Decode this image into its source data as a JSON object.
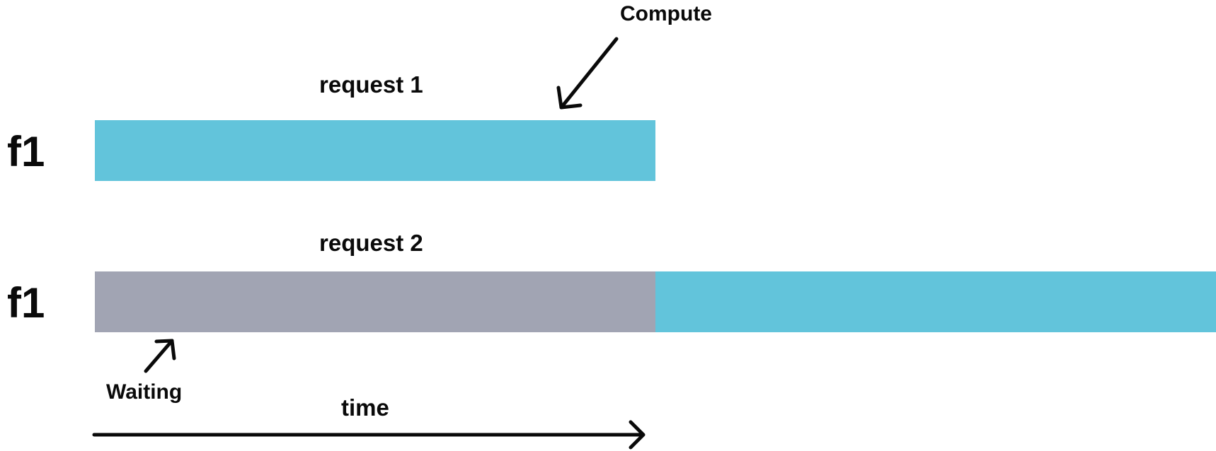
{
  "rows": [
    {
      "label": "f1",
      "request_label": "request 1",
      "segments": [
        {
          "state": "compute",
          "color": "#62C4DB"
        }
      ]
    },
    {
      "label": "f1",
      "request_label": "request 2",
      "segments": [
        {
          "state": "waiting",
          "color": "#A1A4B3"
        },
        {
          "state": "compute",
          "color": "#62C4DB"
        }
      ]
    }
  ],
  "annotations": {
    "compute": "Compute",
    "waiting": "Waiting"
  },
  "axis": {
    "label": "time"
  },
  "colors": {
    "compute": "#62C4DB",
    "waiting": "#A1A4B3",
    "ink": "#0a0a0a"
  },
  "icons": {
    "compute_pointer": "arrow-down-left-icon",
    "waiting_pointer": "arrow-up-right-icon",
    "time_arrow": "arrow-right-icon"
  }
}
